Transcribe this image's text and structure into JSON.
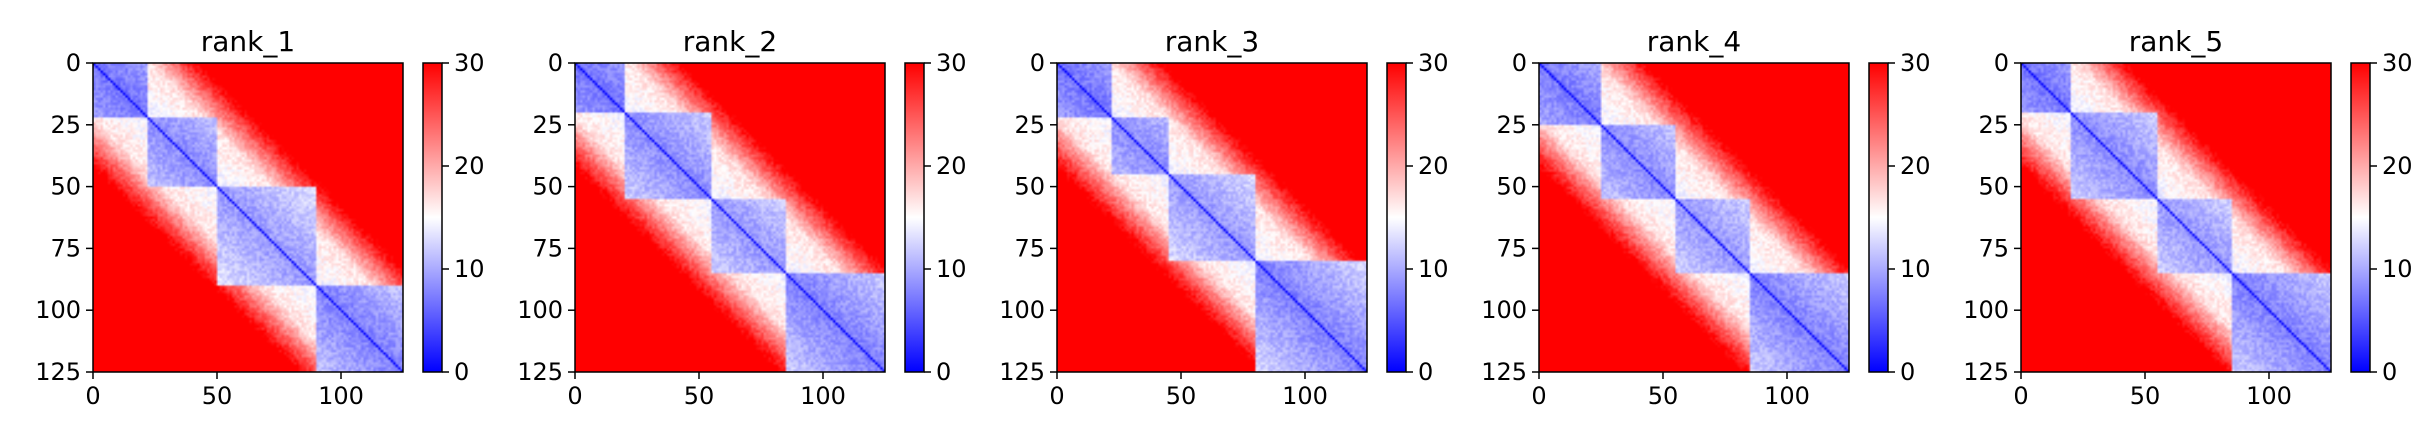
{
  "chart_data": [
    {
      "type": "heatmap",
      "title": "rank_1",
      "xticks": [
        "0",
        "50",
        "100"
      ],
      "yticks": [
        "0",
        "25",
        "50",
        "75",
        "100",
        "125"
      ],
      "xlim": [
        0,
        125
      ],
      "ylim": [
        0,
        125
      ],
      "colorbar": {
        "cmap": "bwr",
        "vmin": 0,
        "vmax": 30,
        "ticks": [
          "0",
          "10",
          "20",
          "30"
        ]
      },
      "blocks": [
        [
          0,
          22,
          5
        ],
        [
          22,
          50,
          9
        ],
        [
          50,
          90,
          11
        ],
        [
          90,
          125,
          7
        ]
      ]
    },
    {
      "type": "heatmap",
      "title": "rank_2",
      "xticks": [
        "0",
        "50",
        "100"
      ],
      "yticks": [
        "0",
        "25",
        "50",
        "75",
        "100",
        "125"
      ],
      "xlim": [
        0,
        125
      ],
      "ylim": [
        0,
        125
      ],
      "colorbar": {
        "cmap": "bwr",
        "vmin": 0,
        "vmax": 30,
        "ticks": [
          "0",
          "10",
          "20",
          "30"
        ]
      },
      "blocks": [
        [
          0,
          20,
          5
        ],
        [
          20,
          55,
          9
        ],
        [
          55,
          85,
          11
        ],
        [
          85,
          125,
          7
        ]
      ]
    },
    {
      "type": "heatmap",
      "title": "rank_3",
      "xticks": [
        "0",
        "50",
        "100"
      ],
      "yticks": [
        "0",
        "25",
        "50",
        "75",
        "100",
        "125"
      ],
      "xlim": [
        0,
        125
      ],
      "ylim": [
        0,
        125
      ],
      "colorbar": {
        "cmap": "bwr",
        "vmin": 0,
        "vmax": 30,
        "ticks": [
          "0",
          "10",
          "20",
          "30"
        ]
      },
      "blocks": [
        [
          0,
          22,
          5
        ],
        [
          22,
          45,
          9
        ],
        [
          45,
          80,
          11
        ],
        [
          80,
          125,
          7
        ]
      ]
    },
    {
      "type": "heatmap",
      "title": "rank_4",
      "xticks": [
        "0",
        "50",
        "100"
      ],
      "yticks": [
        "0",
        "25",
        "50",
        "75",
        "100",
        "125"
      ],
      "xlim": [
        0,
        125
      ],
      "ylim": [
        0,
        125
      ],
      "colorbar": {
        "cmap": "bwr",
        "vmin": 0,
        "vmax": 30,
        "ticks": [
          "0",
          "10",
          "20",
          "30"
        ]
      },
      "blocks": [
        [
          0,
          25,
          6
        ],
        [
          25,
          55,
          9
        ],
        [
          55,
          85,
          11
        ],
        [
          85,
          125,
          7
        ]
      ]
    },
    {
      "type": "heatmap",
      "title": "rank_5",
      "xticks": [
        "0",
        "50",
        "100"
      ],
      "yticks": [
        "0",
        "25",
        "50",
        "75",
        "100",
        "125"
      ],
      "xlim": [
        0,
        125
      ],
      "ylim": [
        0,
        125
      ],
      "colorbar": {
        "cmap": "bwr",
        "vmin": 0,
        "vmax": 30,
        "ticks": [
          "0",
          "10",
          "20",
          "30"
        ]
      },
      "blocks": [
        [
          0,
          20,
          5
        ],
        [
          20,
          55,
          9
        ],
        [
          55,
          85,
          11
        ],
        [
          85,
          125,
          7
        ]
      ]
    }
  ]
}
